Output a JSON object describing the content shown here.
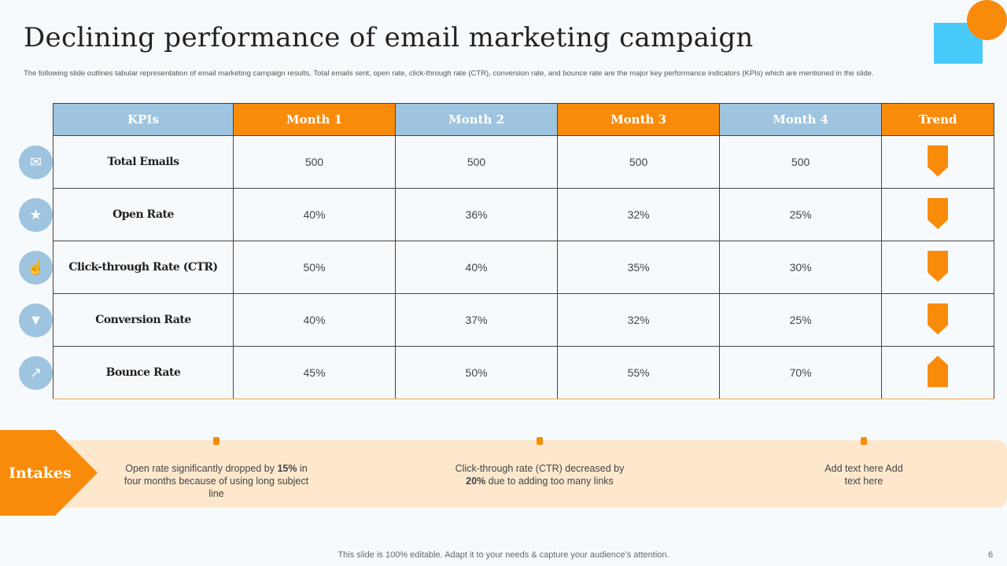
{
  "title": "Declining performance of email marketing campaign",
  "subtitle": "The following slide outlines tabular representation of email marketing campaign results. Total emails sent, open rate, click-through rate (CTR), conversion rate, and bounce rate are the major key performance indicators (KPIs) which are mentioned in the slide.",
  "colors": {
    "orange": "#f98b0b",
    "blue": "#9ec4df",
    "cyan": "#47c9fa"
  },
  "table": {
    "headers": [
      "KPIs",
      "Month 1",
      "Month 2",
      "Month 3",
      "Month 4",
      "Trend"
    ],
    "rows": [
      {
        "kpi": "Total Emails",
        "icon": "envelope-icon",
        "values": [
          "500",
          "500",
          "500",
          "500"
        ],
        "trend": "down"
      },
      {
        "kpi": "Open Rate",
        "icon": "open-envelope-stars-icon",
        "values": [
          "40%",
          "36%",
          "32%",
          "25%"
        ],
        "trend": "down"
      },
      {
        "kpi": "Click-through Rate (CTR)",
        "icon": "hand-click-icon",
        "values": [
          "50%",
          "40%",
          "35%",
          "30%"
        ],
        "trend": "down"
      },
      {
        "kpi": "Conversion Rate",
        "icon": "funnel-icon",
        "values": [
          "40%",
          "37%",
          "32%",
          "25%"
        ],
        "trend": "down"
      },
      {
        "kpi": "Bounce Rate",
        "icon": "chart-email-icon",
        "values": [
          "45%",
          "50%",
          "55%",
          "70%"
        ],
        "trend": "up"
      }
    ]
  },
  "intakes": {
    "label": "Intakes",
    "notes": [
      {
        "pre": "Open rate significantly dropped by ",
        "bold": "15%",
        "post": " in four months because of using long subject line"
      },
      {
        "pre": "Click-through rate (CTR) decreased by ",
        "bold": "20%",
        "post": " due to adding too many links"
      },
      {
        "pre": "Add text here Add text here",
        "bold": "",
        "post": ""
      }
    ]
  },
  "footer": "This slide is 100% editable. Adapt it to your needs & capture your audience’s attention.",
  "page": "6"
}
